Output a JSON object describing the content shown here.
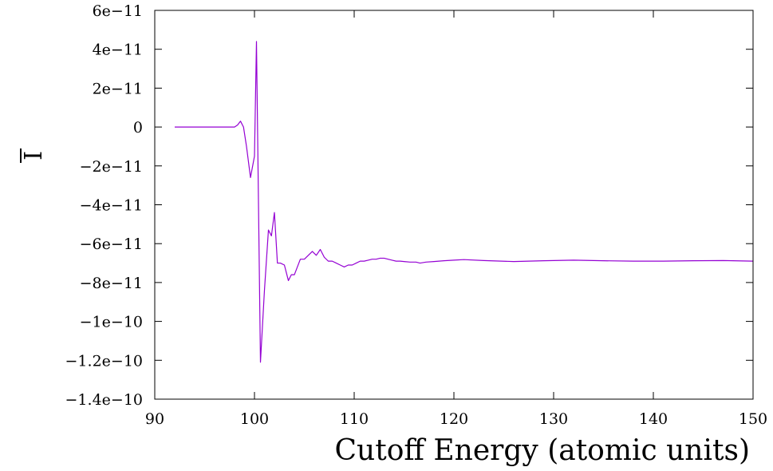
{
  "chart_data": {
    "type": "line",
    "title": "",
    "xlabel": "Cutoff Energy (atomic units)",
    "ylabel": "I",
    "xlim": [
      90,
      150
    ],
    "ylim": [
      -1.4e-10,
      6e-11
    ],
    "grid": false,
    "line_color": "#9400d3",
    "x_ticks": [
      {
        "value": 90,
        "label": "90"
      },
      {
        "value": 100,
        "label": "100"
      },
      {
        "value": 110,
        "label": "110"
      },
      {
        "value": 120,
        "label": "120"
      },
      {
        "value": 130,
        "label": "130"
      },
      {
        "value": 140,
        "label": "140"
      },
      {
        "value": 150,
        "label": "150"
      }
    ],
    "y_ticks": [
      {
        "value": 6e-11,
        "label": "6e−11"
      },
      {
        "value": 4e-11,
        "label": "4e−11"
      },
      {
        "value": 2e-11,
        "label": "2e−11"
      },
      {
        "value": 0,
        "label": "0"
      },
      {
        "value": -2e-11,
        "label": "−2e−11"
      },
      {
        "value": -4e-11,
        "label": "−4e−11"
      },
      {
        "value": -6e-11,
        "label": "−6e−11"
      },
      {
        "value": -8e-11,
        "label": "−8e−11"
      },
      {
        "value": -1e-10,
        "label": "−1e−10"
      },
      {
        "value": -1.2e-10,
        "label": "−1.2e−10"
      },
      {
        "value": -1.4e-10,
        "label": "−1.4e−10"
      }
    ],
    "series": [
      {
        "x": [
          92,
          94,
          96,
          98,
          98.3,
          98.6,
          98.9,
          99.2,
          99.6,
          100.0,
          100.2,
          100.6,
          101.0,
          101.4,
          101.7,
          102.0,
          102.3,
          102.6,
          103.0,
          103.4,
          103.7,
          104.0,
          104.3,
          104.6,
          105.0,
          105.4,
          105.8,
          106.2,
          106.6,
          107.0,
          107.4,
          107.8,
          108.2,
          108.6,
          109.0,
          109.4,
          109.8,
          110.2,
          110.6,
          111.0,
          111.4,
          111.8,
          112.2,
          112.6,
          113.0,
          113.4,
          113.8,
          114.2,
          114.6,
          115.0,
          115.6,
          116.2,
          116.6,
          117.2,
          118.0,
          119.0,
          120.0,
          121.0,
          123.0,
          126.0,
          129.0,
          132.0,
          135.0,
          138.0,
          141.0,
          144.0,
          147.0,
          150.0
        ],
        "y": [
          0,
          0,
          0,
          0,
          1e-12,
          3e-12,
          0,
          -1e-11,
          -2.6e-11,
          -1.5e-11,
          4.4e-11,
          -1.21e-10,
          -8.4e-11,
          -5.3e-11,
          -5.6e-11,
          -4.4e-11,
          -7e-11,
          -7e-11,
          -7.1e-11,
          -7.9e-11,
          -7.6e-11,
          -7.6e-11,
          -7.2e-11,
          -6.8e-11,
          -6.8e-11,
          -6.6e-11,
          -6.4e-11,
          -6.6e-11,
          -6.3e-11,
          -6.7e-11,
          -6.9e-11,
          -6.9e-11,
          -7e-11,
          -7.1e-11,
          -7.2e-11,
          -7.1e-11,
          -7.1e-11,
          -7e-11,
          -6.9e-11,
          -6.9e-11,
          -6.85e-11,
          -6.8e-11,
          -6.8e-11,
          -6.75e-11,
          -6.75e-11,
          -6.8e-11,
          -6.85e-11,
          -6.9e-11,
          -6.9e-11,
          -6.92e-11,
          -6.95e-11,
          -6.95e-11,
          -7e-11,
          -6.95e-11,
          -6.92e-11,
          -6.88e-11,
          -6.85e-11,
          -6.82e-11,
          -6.87e-11,
          -6.92e-11,
          -6.88e-11,
          -6.85e-11,
          -6.88e-11,
          -6.9e-11,
          -6.9e-11,
          -6.88e-11,
          -6.87e-11,
          -6.9e-11
        ]
      }
    ]
  }
}
